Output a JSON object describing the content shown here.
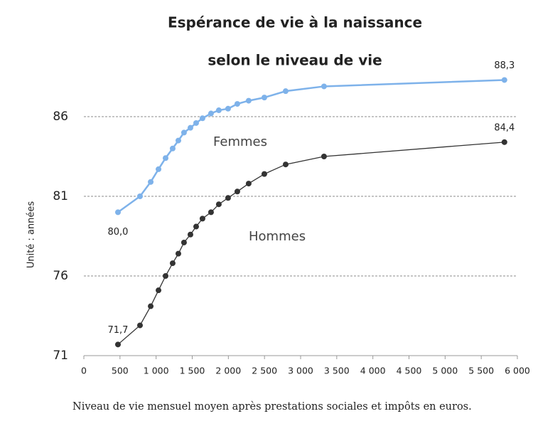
{
  "chart_data": {
    "type": "line",
    "title": "Espérance de vie à la naissance",
    "subtitle": "selon le niveau de vie",
    "y_label": "Unité : années",
    "x_label": "Niveau de vie mensuel moyen après prestations sociales et impôts en euros.",
    "x": [
      472,
      777,
      925,
      1033,
      1131,
      1229,
      1308,
      1386,
      1475,
      1554,
      1642,
      1760,
      1868,
      1996,
      2124,
      2281,
      2498,
      2793,
      3324,
      5821
    ],
    "series": [
      {
        "name": "Femmes",
        "color": "#7eb2ea",
        "values": [
          80.0,
          81.0,
          81.9,
          82.7,
          83.4,
          84.0,
          84.5,
          85.0,
          85.3,
          85.6,
          85.9,
          86.2,
          86.4,
          86.5,
          86.8,
          87.0,
          87.2,
          87.6,
          87.9,
          88.3
        ],
        "value_labels": [
          "80,0",
          null,
          null,
          null,
          null,
          null,
          null,
          null,
          null,
          null,
          null,
          null,
          null,
          null,
          null,
          null,
          null,
          null,
          null,
          "88,3"
        ]
      },
      {
        "name": "Hommes",
        "color": "#333333",
        "values": [
          71.7,
          72.9,
          74.1,
          75.1,
          76.0,
          76.8,
          77.4,
          78.1,
          78.6,
          79.1,
          79.6,
          80.0,
          80.5,
          80.9,
          81.3,
          81.8,
          82.4,
          83.0,
          83.5,
          84.4
        ],
        "value_labels": [
          "71,7",
          null,
          null,
          null,
          null,
          null,
          null,
          null,
          null,
          null,
          null,
          null,
          null,
          null,
          null,
          null,
          null,
          null,
          null,
          "84,4"
        ]
      }
    ],
    "xlim": [
      0,
      6000
    ],
    "xticks": [
      0,
      500,
      {
        "value": 1000,
        "label": "1 000"
      },
      {
        "value": 1500,
        "label": "1 500"
      },
      {
        "value": 2000,
        "label": "2 000"
      },
      {
        "value": 2500,
        "label": "2 500"
      },
      {
        "value": 3000,
        "label": "3 000"
      },
      {
        "value": 3500,
        "label": "3 500"
      },
      {
        "value": 4000,
        "label": "4 000"
      },
      {
        "value": 4500,
        "label": "4 500"
      },
      {
        "value": 5000,
        "label": "5 000"
      },
      {
        "value": 5500,
        "label": "5 500"
      },
      {
        "value": 6000,
        "label": "6 000"
      }
    ],
    "ylim": [
      71,
      88.5
    ],
    "yticks": [
      71,
      76,
      81,
      86
    ],
    "grid": true
  }
}
